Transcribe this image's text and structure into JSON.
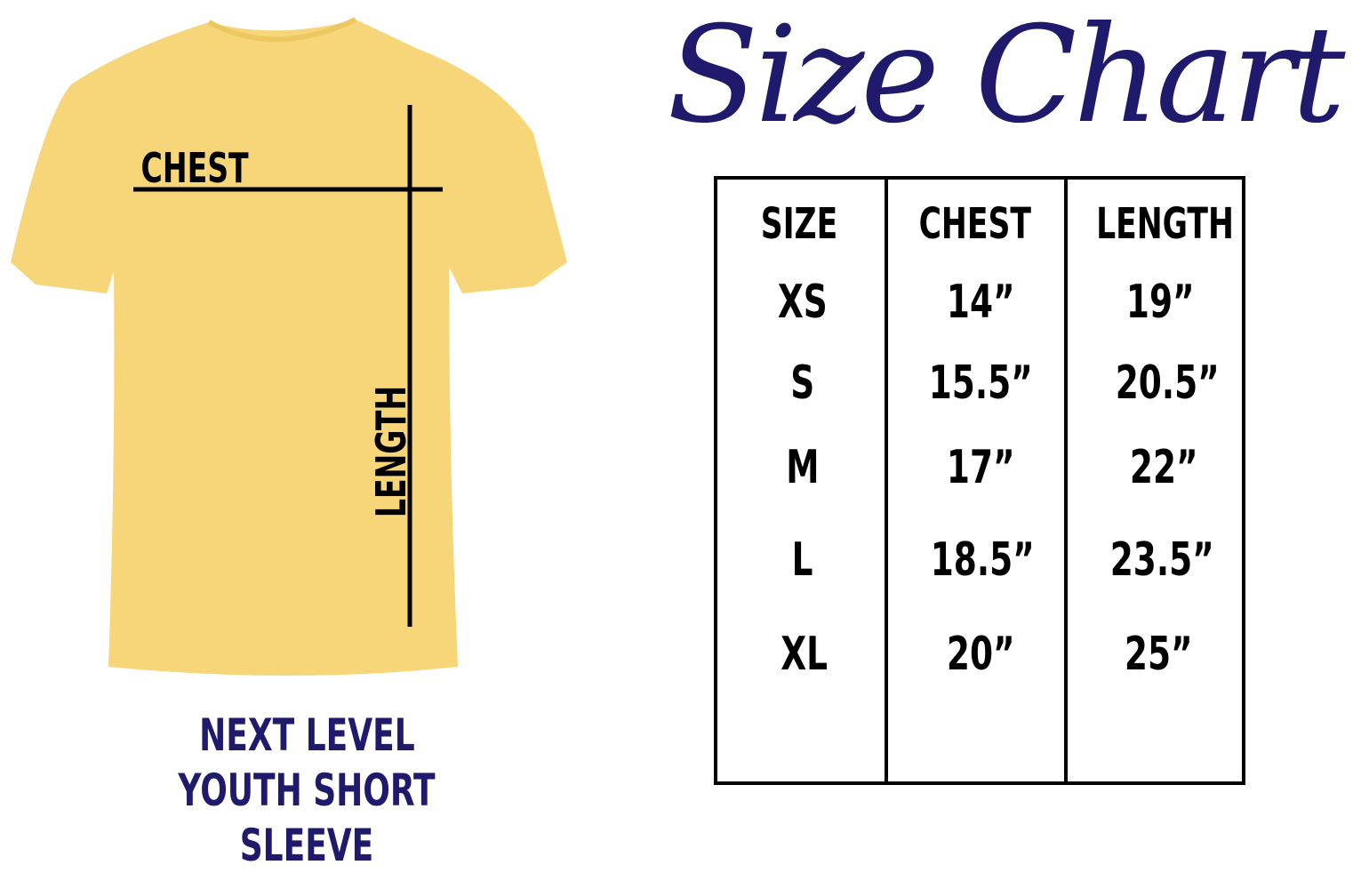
{
  "title": "Size Chart",
  "shirt": {
    "color": "#f6d679",
    "labels": {
      "chest": "CHEST",
      "length": "LENGTH"
    }
  },
  "caption": {
    "line1": "NEXT LEVEL",
    "line2": "YOUTH SHORT SLEEVE"
  },
  "accent_color": "#1f1a6b",
  "table": {
    "headers": [
      "SIZE",
      "CHEST",
      "LENGTH"
    ],
    "rows": [
      [
        "XS",
        "14”",
        "19”"
      ],
      [
        "S",
        "15.5”",
        "20.5”"
      ],
      [
        "M",
        "17”",
        "22”"
      ],
      [
        "L",
        "18.5”",
        "23.5”"
      ],
      [
        "XL",
        "20”",
        "25”"
      ]
    ]
  }
}
